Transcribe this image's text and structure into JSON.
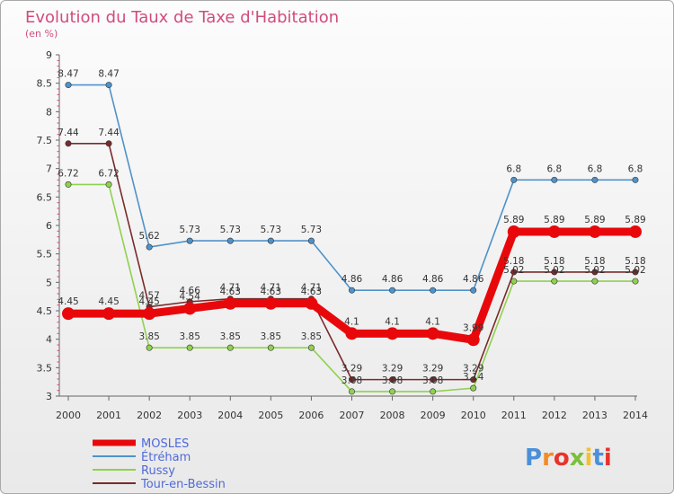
{
  "chart_data": {
    "type": "line",
    "title": "Evolution du Taux de Taxe d'Habitation",
    "subtitle": "(en %)",
    "x": [
      "2000",
      "2001",
      "2002",
      "2003",
      "2004",
      "2005",
      "2006",
      "2007",
      "2008",
      "2009",
      "2010",
      "2011",
      "2012",
      "2013",
      "2014"
    ],
    "y_ticks": [
      "3",
      "3.5",
      "4",
      "4.5",
      "5",
      "5.5",
      "6",
      "6.5",
      "7",
      "7.5",
      "8",
      "8.5",
      "9"
    ],
    "ylim": [
      3,
      9
    ],
    "grid": false,
    "legend_position": "bottom-left",
    "series": [
      {
        "name": "Étréham",
        "color": "#4f92c9",
        "values": [
          8.47,
          8.47,
          5.62,
          5.73,
          5.73,
          5.73,
          5.73,
          4.86,
          4.86,
          4.86,
          4.86,
          6.8,
          6.8,
          6.8,
          6.8
        ],
        "labels": [
          "8.47",
          "8.47",
          "5.62",
          "5.73",
          "5.73",
          "5.73",
          "5.73",
          "4.86",
          "4.86",
          "4.86",
          "4.86",
          "6.8",
          "6.8",
          "6.8",
          "6.8"
        ]
      },
      {
        "name": "Russy",
        "color": "#8fd14f",
        "values": [
          6.72,
          6.72,
          3.85,
          3.85,
          3.85,
          3.85,
          3.85,
          3.08,
          3.08,
          3.08,
          3.14,
          5.02,
          5.02,
          5.02,
          5.02
        ],
        "labels": [
          "6.72",
          "6.72",
          "3.85",
          "3.85",
          "3.85",
          "3.85",
          "3.85",
          "3.08",
          "3.08",
          "3.08",
          "3.14",
          "5.02",
          "5.02",
          "5.02",
          "5.02"
        ]
      },
      {
        "name": "Tour-en-Bessin",
        "color": "#7a2a2a",
        "values": [
          7.44,
          7.44,
          4.57,
          4.66,
          4.71,
          4.71,
          4.71,
          3.29,
          3.29,
          3.29,
          3.29,
          5.18,
          5.18,
          5.18,
          5.18
        ],
        "labels": [
          "7.44",
          "7.44",
          "4.57",
          "4.66",
          "4.71",
          "4.71",
          "4.71",
          "3.29",
          "3.29",
          "3.29",
          "3.29",
          "5.18",
          "5.18",
          "5.18",
          "5.18"
        ]
      },
      {
        "name": "MOSLES",
        "color": "#e8080b",
        "emphasis": true,
        "values": [
          4.45,
          4.45,
          4.45,
          4.54,
          4.63,
          4.63,
          4.63,
          4.1,
          4.1,
          4.1,
          3.99,
          5.89,
          5.89,
          5.89,
          5.89
        ],
        "labels": [
          "4.45",
          "4.45",
          "4.45",
          "4.54",
          "4.63",
          "4.63",
          "4.63",
          "4.1",
          "4.1",
          "4.1",
          "3.99",
          "5.89",
          "5.89",
          "5.89",
          "5.89"
        ]
      }
    ],
    "legend": [
      {
        "name": "MOSLES",
        "color": "#e8080b",
        "text_color": "#4f6ad8",
        "emphasis": true
      },
      {
        "name": "Étréham",
        "color": "#4f92c9",
        "text_color": "#4f6ad8"
      },
      {
        "name": "Russy",
        "color": "#8fd14f",
        "text_color": "#4f6ad8"
      },
      {
        "name": "Tour-en-Bessin",
        "color": "#7a2a2a",
        "text_color": "#4f6ad8"
      }
    ]
  },
  "logo": {
    "text": "Proxiti",
    "colors": [
      "#4a90d9",
      "#f28c28",
      "#e8332a",
      "#7bbf3a",
      "#f2c12e",
      "#4a90d9",
      "#e8332a"
    ]
  }
}
